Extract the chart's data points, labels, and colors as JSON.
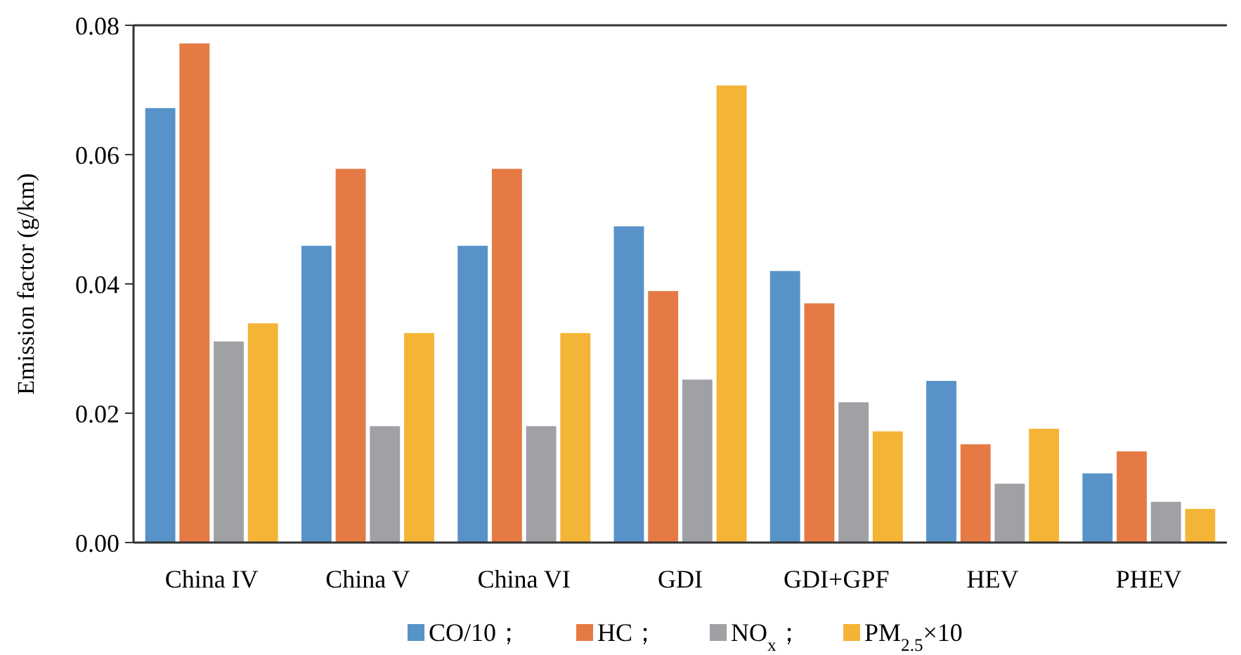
{
  "chart_data": {
    "type": "bar",
    "ylabel": "Emission factor (g/km)",
    "categories": [
      "China IV",
      "China V",
      "China VI",
      "GDI",
      "GDI+GPF",
      "HEV",
      "PHEV"
    ],
    "series": [
      {
        "name": "CO/10；",
        "color": "#5793c8",
        "values": [
          0.0672,
          0.0459,
          0.0459,
          0.0489,
          0.042,
          0.025,
          0.0107
        ]
      },
      {
        "name": "HC；",
        "color": "#e57a44",
        "values": [
          0.0772,
          0.0578,
          0.0578,
          0.0389,
          0.037,
          0.0152,
          0.0141
        ]
      },
      {
        "name": "NO$_{x}$；",
        "color": "#a0a1a5",
        "values": [
          0.0311,
          0.018,
          0.018,
          0.0252,
          0.0217,
          0.0091,
          0.0063
        ]
      },
      {
        "name": "PM$_{2.5}$×10",
        "color": "#f4b436",
        "values": [
          0.0339,
          0.0324,
          0.0324,
          0.0707,
          0.0172,
          0.0176,
          0.0052
        ]
      }
    ],
    "ylim": [
      0,
      0.08
    ],
    "yticks": [
      {
        "value": 0,
        "label": "0.00"
      },
      {
        "value": 0.02,
        "label": "0.02"
      },
      {
        "value": 0.04,
        "label": "0.04"
      },
      {
        "value": 0.06,
        "label": "0.06"
      },
      {
        "value": 0.08,
        "label": "0.08"
      }
    ],
    "grid": false,
    "legend": "bottom"
  }
}
